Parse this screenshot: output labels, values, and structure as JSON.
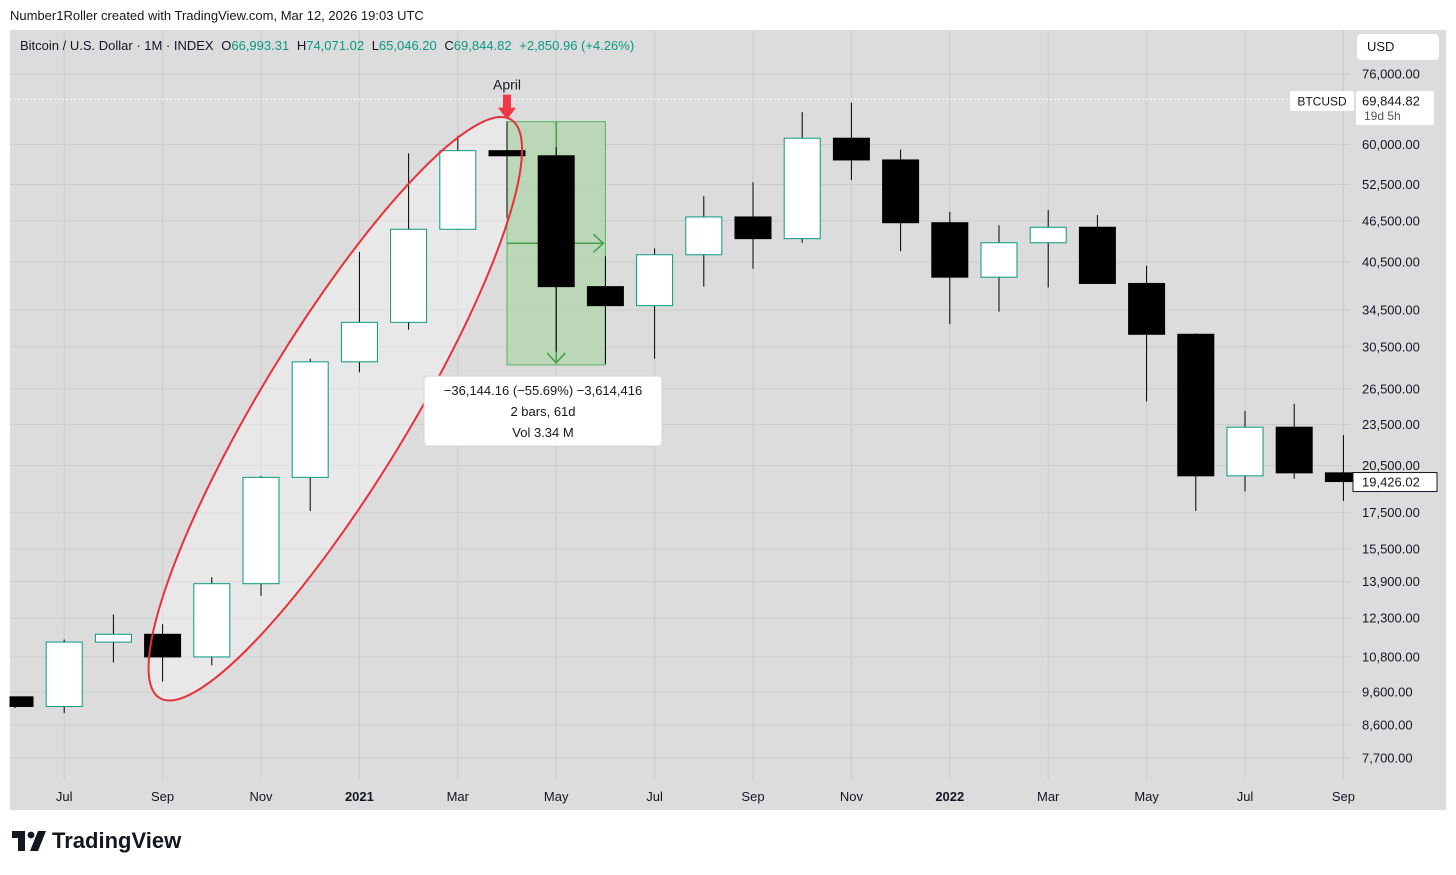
{
  "header": {
    "credit": "Number1Roller created with TradingView.com, Mar 12, 2026 19:03 UTC"
  },
  "legend": {
    "symbol": "Bitcoin / U.S. Dollar · 1M · INDEX",
    "o_label": "O",
    "o_value": "66,993.31",
    "h_label": "H",
    "h_value": "74,071.02",
    "l_label": "L",
    "l_value": "65,046.20",
    "c_label": "C",
    "c_value": "69,844.82",
    "change": "+2,850.96 (+4.26%)"
  },
  "currency": "USD",
  "price_labels": {
    "symbol_tag": "BTCUSD",
    "last_price": "69,844.82",
    "countdown": "19d 5h",
    "current_price": "19,426.02"
  },
  "annotation": {
    "arrow_label": "April",
    "measure_line1": "−36,144.16 (−55.69%) −3,614,416",
    "measure_line2": "2 bars, 61d",
    "measure_line3": "Vol 3.34 M"
  },
  "brand": {
    "name": "TradingView"
  },
  "colors": {
    "up_fill": "#ffffff",
    "up_border": "#089981",
    "down_fill": "#000000",
    "wick": "#000000",
    "ellipse": "#e8303a",
    "arrow": "#f23645",
    "measure_fill": "#b9d7b4",
    "measure_border": "#4caf50",
    "legend_value": "#089981"
  },
  "chart_data": {
    "type": "candlestick",
    "timeframe": "1M",
    "y_scale": "log",
    "ylim": [
      7000,
      82000
    ],
    "y_ticks": [
      {
        "v": 76000,
        "label": "76,000.00"
      },
      {
        "v": 60000,
        "label": "60,000.00"
      },
      {
        "v": 52500,
        "label": "52,500.00"
      },
      {
        "v": 46500,
        "label": "46,500.00"
      },
      {
        "v": 40500,
        "label": "40,500.00"
      },
      {
        "v": 34500,
        "label": "34,500.00"
      },
      {
        "v": 30500,
        "label": "30,500.00"
      },
      {
        "v": 26500,
        "label": "26,500.00"
      },
      {
        "v": 23500,
        "label": "23,500.00"
      },
      {
        "v": 20500,
        "label": "20,500.00"
      },
      {
        "v": 17500,
        "label": "17,500.00"
      },
      {
        "v": 15500,
        "label": "15,500.00"
      },
      {
        "v": 13900,
        "label": "13,900.00"
      },
      {
        "v": 12300,
        "label": "12,300.00"
      },
      {
        "v": 10800,
        "label": "10,800.00"
      },
      {
        "v": 9600,
        "label": "9,600.00"
      },
      {
        "v": 8600,
        "label": "8,600.00"
      },
      {
        "v": 7700,
        "label": "7,700.00"
      }
    ],
    "x_ticks": [
      {
        "i": 1,
        "label": "Jul",
        "bold": false
      },
      {
        "i": 3,
        "label": "Sep",
        "bold": false
      },
      {
        "i": 5,
        "label": "Nov",
        "bold": false
      },
      {
        "i": 7,
        "label": "2021",
        "bold": true
      },
      {
        "i": 9,
        "label": "Mar",
        "bold": false
      },
      {
        "i": 11,
        "label": "May",
        "bold": false
      },
      {
        "i": 13,
        "label": "Jul",
        "bold": false
      },
      {
        "i": 15,
        "label": "Sep",
        "bold": false
      },
      {
        "i": 17,
        "label": "Nov",
        "bold": false
      },
      {
        "i": 19,
        "label": "2022",
        "bold": true
      },
      {
        "i": 21,
        "label": "Mar",
        "bold": false
      },
      {
        "i": 23,
        "label": "May",
        "bold": false
      },
      {
        "i": 25,
        "label": "Jul",
        "bold": false
      },
      {
        "i": 27,
        "label": "Sep",
        "bold": false
      }
    ],
    "candles": [
      {
        "date": "2020-06",
        "o": 9450,
        "h": 9450,
        "l": 9100,
        "c": 9150
      },
      {
        "date": "2020-07",
        "o": 9150,
        "h": 11450,
        "l": 8950,
        "c": 11350
      },
      {
        "date": "2020-08",
        "o": 11350,
        "h": 12450,
        "l": 10600,
        "c": 11650
      },
      {
        "date": "2020-09",
        "o": 11650,
        "h": 12050,
        "l": 9950,
        "c": 10800
      },
      {
        "date": "2020-10",
        "o": 10800,
        "h": 14100,
        "l": 10500,
        "c": 13800
      },
      {
        "date": "2020-11",
        "o": 13800,
        "h": 19800,
        "l": 13250,
        "c": 19700
      },
      {
        "date": "2020-12",
        "o": 19700,
        "h": 29300,
        "l": 17600,
        "c": 29000
      },
      {
        "date": "2021-01",
        "o": 29000,
        "h": 41900,
        "l": 28000,
        "c": 33100
      },
      {
        "date": "2021-02",
        "o": 33100,
        "h": 58300,
        "l": 32300,
        "c": 45200
      },
      {
        "date": "2021-03",
        "o": 45200,
        "h": 61800,
        "l": 45100,
        "c": 58800
      },
      {
        "date": "2021-04",
        "o": 58800,
        "h": 64800,
        "l": 47000,
        "c": 57800
      },
      {
        "date": "2021-05",
        "o": 57800,
        "h": 59500,
        "l": 30000,
        "c": 37300
      },
      {
        "date": "2021-06",
        "o": 37300,
        "h": 41300,
        "l": 28800,
        "c": 35000
      },
      {
        "date": "2021-07",
        "o": 35000,
        "h": 42400,
        "l": 29300,
        "c": 41500
      },
      {
        "date": "2021-08",
        "o": 41500,
        "h": 50500,
        "l": 37300,
        "c": 47100
      },
      {
        "date": "2021-09",
        "o": 47100,
        "h": 52900,
        "l": 39600,
        "c": 43800
      },
      {
        "date": "2021-10",
        "o": 43800,
        "h": 66900,
        "l": 43200,
        "c": 61300
      },
      {
        "date": "2021-11",
        "o": 61300,
        "h": 69000,
        "l": 53300,
        "c": 57000
      },
      {
        "date": "2021-12",
        "o": 57000,
        "h": 59000,
        "l": 42000,
        "c": 46200
      },
      {
        "date": "2022-01",
        "o": 46200,
        "h": 47900,
        "l": 32900,
        "c": 38500
      },
      {
        "date": "2022-02",
        "o": 38500,
        "h": 45800,
        "l": 34300,
        "c": 43200
      },
      {
        "date": "2022-03",
        "o": 43200,
        "h": 48200,
        "l": 37200,
        "c": 45500
      },
      {
        "date": "2022-04",
        "o": 45500,
        "h": 47400,
        "l": 37700,
        "c": 37700
      },
      {
        "date": "2022-05",
        "o": 37700,
        "h": 40000,
        "l": 25400,
        "c": 31800
      },
      {
        "date": "2022-06",
        "o": 31800,
        "h": 31900,
        "l": 17600,
        "c": 19800
      },
      {
        "date": "2022-07",
        "o": 19800,
        "h": 24600,
        "l": 18800,
        "c": 23300
      },
      {
        "date": "2022-08",
        "o": 23300,
        "h": 25200,
        "l": 19600,
        "c": 20000
      },
      {
        "date": "2022-09",
        "o": 20000,
        "h": 22700,
        "l": 18200,
        "c": 19426.02
      }
    ],
    "measure": {
      "from_date": "2021-04",
      "to_date": "2021-06",
      "from_price": 64800,
      "to_price": 28700
    },
    "ellipse_highlight": {
      "from_date": "2020-09",
      "to_date": "2021-04",
      "low_price": 9800,
      "high_price": 64800
    },
    "highlight_arrow_date": "2021-04",
    "last_price_line": 69844.82
  }
}
